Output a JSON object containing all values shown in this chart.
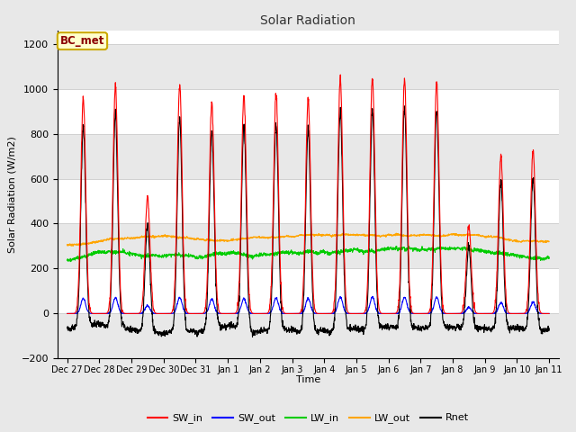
{
  "title": "Solar Radiation",
  "ylabel": "Solar Radiation (W/m2)",
  "xlabel": "Time",
  "ylim": [
    -200,
    1260
  ],
  "yticks": [
    -200,
    0,
    200,
    400,
    600,
    800,
    1000,
    1200
  ],
  "plot_bg_color": "#ffffff",
  "fig_bg_color": "#e8e8e8",
  "series_colors": {
    "SW_in": "#ff0000",
    "SW_out": "#0000ff",
    "LW_in": "#00cc00",
    "LW_out": "#ffa500",
    "Rnet": "#000000"
  },
  "annotation_text": "BC_met",
  "annotation_bg": "#ffffcc",
  "annotation_border": "#ccaa00",
  "xtick_labels": [
    "Dec 27",
    "Dec 28",
    "Dec 29",
    "Dec 30",
    "Dec 31",
    "Jan 1",
    "Jan 2",
    "Jan 3",
    "Jan 4",
    "Jan 5",
    "Jan 6",
    "Jan 7",
    "Jan 8",
    "Jan 9",
    "Jan 10",
    "Jan 11"
  ],
  "n_days": 15,
  "pts_per_day": 144,
  "sw_in_peaks": [
    960,
    1010,
    520,
    1020,
    940,
    970,
    975,
    960,
    1050,
    1050,
    1040,
    1030,
    390,
    700,
    730
  ],
  "lw_in_range": [
    220,
    310
  ],
  "lw_out_range": [
    295,
    390
  ],
  "rnet_night": -100,
  "legend_entries": [
    "SW_in",
    "SW_out",
    "LW_in",
    "LW_out",
    "Rnet"
  ]
}
